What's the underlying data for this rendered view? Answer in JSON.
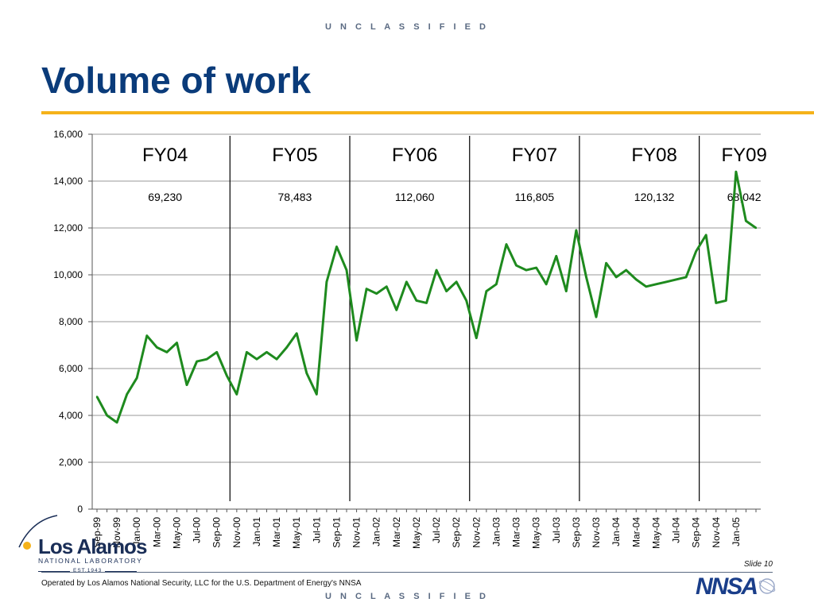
{
  "header": {
    "classification": "U N C L A S S I F I E D",
    "title": "Volume of work"
  },
  "chart_data": {
    "type": "line",
    "title": "",
    "xlabel": "",
    "ylabel": "",
    "ylim": [
      0,
      16000
    ],
    "yticks": [
      "0",
      "2,000",
      "4,000",
      "6,000",
      "8,000",
      "10,000",
      "12,000",
      "14,000",
      "16,000"
    ],
    "grid": true,
    "line_color": "#1e8a1e",
    "x_tick_labels": [
      "Sep-99",
      "Nov-99",
      "Jan-00",
      "Mar-00",
      "May-00",
      "Jul-00",
      "Sep-00",
      "Nov-00",
      "Jan-01",
      "Mar-01",
      "May-01",
      "Jul-01",
      "Sep-01",
      "Nov-01",
      "Jan-02",
      "Mar-02",
      "May-02",
      "Jul-02",
      "Sep-02",
      "Nov-02",
      "Jan-03",
      "Mar-03",
      "May-03",
      "Jul-03",
      "Sep-03",
      "Nov-03",
      "Jan-04",
      "Mar-04",
      "May-04",
      "Jul-04",
      "Sep-04",
      "Nov-04",
      "Jan-05"
    ],
    "values": [
      4800,
      4000,
      3700,
      4900,
      5600,
      7400,
      6900,
      6700,
      7100,
      5300,
      6300,
      6400,
      6700,
      5700,
      4900,
      6700,
      6400,
      6700,
      6400,
      6900,
      7500,
      5800,
      4900,
      9700,
      11200,
      10200,
      7200,
      9400,
      9200,
      9500,
      8500,
      9700,
      8900,
      8800,
      10200,
      9300,
      9700,
      8900,
      7300,
      9300,
      9600,
      11300,
      10400,
      10200,
      10300,
      9600,
      10800,
      9300,
      11900,
      9900,
      8200,
      10500,
      9900,
      10200,
      9800,
      9500,
      9600,
      9700,
      9800,
      9900,
      11000,
      11700,
      8800,
      8900,
      14400,
      12300,
      12000
    ],
    "fiscal_dividers": [
      13,
      25,
      37,
      48,
      60
    ],
    "fiscal_years": [
      {
        "label": "FY04",
        "total": "69,230",
        "x_index": 6.5
      },
      {
        "label": "FY05",
        "total": "78,483",
        "x_index": 19.5
      },
      {
        "label": "FY06",
        "total": "112,060",
        "x_index": 31.5
      },
      {
        "label": "FY07",
        "total": "116,805",
        "x_index": 43.5
      },
      {
        "label": "FY08",
        "total": "120,132",
        "x_index": 55.5
      },
      {
        "label": "FY09",
        "total": "68,042",
        "x_index": 64.5
      }
    ]
  },
  "logo": {
    "name": "Los Alamos",
    "sub": "NATIONAL LABORATORY",
    "est": "EST.1943"
  },
  "footer": {
    "slide": "Slide 10",
    "operated_by": "Operated by Los Alamos National Security, LLC for the U.S. Department of Energy's NNSA",
    "classification": "U N C L A S S I F I E D",
    "nnsa_logo": "NNSA"
  }
}
